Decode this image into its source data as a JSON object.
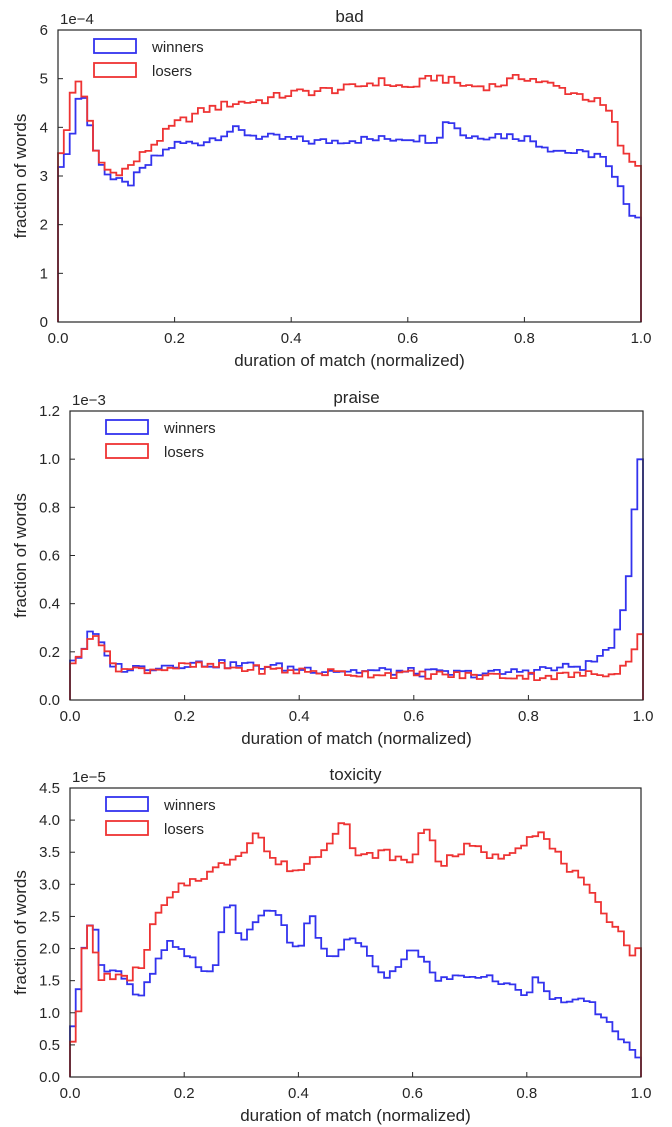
{
  "chart_data": [
    {
      "type": "line",
      "title": "bad",
      "xlabel": "duration of match (normalized)",
      "ylabel": "fraction of words",
      "multiplier": "1e−4",
      "xlim": [
        0,
        1
      ],
      "ylim": [
        0,
        6
      ],
      "xticks": [
        "0.0",
        "0.2",
        "0.4",
        "0.6",
        "0.8",
        "1.0"
      ],
      "yticks": [
        "0",
        "1",
        "2",
        "3",
        "4",
        "5",
        "6"
      ],
      "grid": false,
      "legend_position": "top-left",
      "step": "histogram (100 bins)",
      "series": [
        {
          "name": "winners",
          "color": "#3333ee",
          "anchors": [
            [
              0,
              3.3
            ],
            [
              0.01,
              3.25
            ],
            [
              0.02,
              3.5
            ],
            [
              0.03,
              4.4
            ],
            [
              0.04,
              4.75
            ],
            [
              0.05,
              4.5
            ],
            [
              0.06,
              3.6
            ],
            [
              0.07,
              3.4
            ],
            [
              0.09,
              2.95
            ],
            [
              0.12,
              2.8
            ],
            [
              0.16,
              3.3
            ],
            [
              0.2,
              3.65
            ],
            [
              0.25,
              3.7
            ],
            [
              0.3,
              3.95
            ],
            [
              0.35,
              3.8
            ],
            [
              0.4,
              3.75
            ],
            [
              0.45,
              3.7
            ],
            [
              0.5,
              3.75
            ],
            [
              0.55,
              3.75
            ],
            [
              0.6,
              3.8
            ],
            [
              0.65,
              3.75
            ],
            [
              0.67,
              4.2
            ],
            [
              0.7,
              3.8
            ],
            [
              0.75,
              3.85
            ],
            [
              0.8,
              3.8
            ],
            [
              0.85,
              3.55
            ],
            [
              0.9,
              3.45
            ],
            [
              0.93,
              3.45
            ],
            [
              0.95,
              3.05
            ],
            [
              0.97,
              2.6
            ],
            [
              0.99,
              2.15
            ],
            [
              1.0,
              2.15
            ]
          ]
        },
        {
          "name": "losers",
          "color": "#ee3333",
          "anchors": [
            [
              0,
              3.55
            ],
            [
              0.01,
              3.5
            ],
            [
              0.02,
              4.3
            ],
            [
              0.03,
              5.1
            ],
            [
              0.04,
              4.8
            ],
            [
              0.05,
              4.55
            ],
            [
              0.06,
              3.6
            ],
            [
              0.07,
              3.35
            ],
            [
              0.09,
              3.05
            ],
            [
              0.12,
              3.15
            ],
            [
              0.16,
              3.6
            ],
            [
              0.2,
              4.05
            ],
            [
              0.25,
              4.35
            ],
            [
              0.3,
              4.5
            ],
            [
              0.35,
              4.55
            ],
            [
              0.4,
              4.7
            ],
            [
              0.45,
              4.75
            ],
            [
              0.5,
              4.8
            ],
            [
              0.55,
              4.95
            ],
            [
              0.6,
              4.8
            ],
            [
              0.65,
              5.05
            ],
            [
              0.7,
              4.85
            ],
            [
              0.75,
              4.85
            ],
            [
              0.8,
              5.05
            ],
            [
              0.85,
              4.85
            ],
            [
              0.9,
              4.65
            ],
            [
              0.93,
              4.5
            ],
            [
              0.95,
              4.25
            ],
            [
              0.97,
              3.45
            ],
            [
              0.99,
              3.25
            ],
            [
              1.0,
              3.25
            ]
          ]
        }
      ]
    },
    {
      "type": "line",
      "title": "praise",
      "xlabel": "duration of match (normalized)",
      "ylabel": "fraction of words",
      "multiplier": "1e−3",
      "xlim": [
        0,
        1
      ],
      "ylim": [
        0,
        1.2
      ],
      "xticks": [
        "0.0",
        "0.2",
        "0.4",
        "0.6",
        "0.8",
        "1.0"
      ],
      "yticks": [
        "0.0",
        "0.2",
        "0.4",
        "0.6",
        "0.8",
        "1.0",
        "1.2"
      ],
      "grid": false,
      "legend_position": "top-left",
      "step": "histogram (100 bins)",
      "series": [
        {
          "name": "winners",
          "color": "#3333ee",
          "anchors": [
            [
              0,
              0.17
            ],
            [
              0.02,
              0.18
            ],
            [
              0.03,
              0.26
            ],
            [
              0.04,
              0.28
            ],
            [
              0.05,
              0.26
            ],
            [
              0.06,
              0.19
            ],
            [
              0.08,
              0.14
            ],
            [
              0.1,
              0.13
            ],
            [
              0.15,
              0.14
            ],
            [
              0.2,
              0.15
            ],
            [
              0.25,
              0.15
            ],
            [
              0.3,
              0.145
            ],
            [
              0.35,
              0.14
            ],
            [
              0.4,
              0.13
            ],
            [
              0.45,
              0.125
            ],
            [
              0.5,
              0.12
            ],
            [
              0.55,
              0.12
            ],
            [
              0.6,
              0.115
            ],
            [
              0.65,
              0.11
            ],
            [
              0.7,
              0.11
            ],
            [
              0.75,
              0.11
            ],
            [
              0.8,
              0.125
            ],
            [
              0.85,
              0.13
            ],
            [
              0.88,
              0.14
            ],
            [
              0.9,
              0.14
            ],
            [
              0.92,
              0.17
            ],
            [
              0.94,
              0.21
            ],
            [
              0.96,
              0.3
            ],
            [
              0.97,
              0.41
            ],
            [
              0.98,
              0.61
            ],
            [
              0.99,
              1.0
            ],
            [
              1.0,
              1.0
            ]
          ]
        },
        {
          "name": "losers",
          "color": "#ee3333",
          "anchors": [
            [
              0,
              0.16
            ],
            [
              0.02,
              0.17
            ],
            [
              0.03,
              0.25
            ],
            [
              0.04,
              0.29
            ],
            [
              0.05,
              0.27
            ],
            [
              0.06,
              0.2
            ],
            [
              0.08,
              0.14
            ],
            [
              0.1,
              0.125
            ],
            [
              0.15,
              0.13
            ],
            [
              0.2,
              0.14
            ],
            [
              0.25,
              0.14
            ],
            [
              0.3,
              0.13
            ],
            [
              0.35,
              0.125
            ],
            [
              0.4,
              0.12
            ],
            [
              0.45,
              0.115
            ],
            [
              0.5,
              0.11
            ],
            [
              0.55,
              0.11
            ],
            [
              0.6,
              0.105
            ],
            [
              0.65,
              0.105
            ],
            [
              0.7,
              0.1
            ],
            [
              0.75,
              0.1
            ],
            [
              0.8,
              0.1
            ],
            [
              0.85,
              0.1
            ],
            [
              0.9,
              0.105
            ],
            [
              0.93,
              0.11
            ],
            [
              0.95,
              0.12
            ],
            [
              0.97,
              0.14
            ],
            [
              0.98,
              0.18
            ],
            [
              0.99,
              0.27
            ],
            [
              1.0,
              0.27
            ]
          ]
        }
      ]
    },
    {
      "type": "line",
      "title": "toxicity",
      "xlabel": "duration of match (normalized)",
      "ylabel": "fraction of words",
      "multiplier": "1e−5",
      "xlim": [
        0,
        1
      ],
      "ylim": [
        0,
        4.5
      ],
      "xticks": [
        "0.0",
        "0.2",
        "0.4",
        "0.6",
        "0.8",
        "1.0"
      ],
      "yticks": [
        "0.0",
        "0.5",
        "1.0",
        "1.5",
        "2.0",
        "2.5",
        "3.0",
        "3.5",
        "4.0",
        "4.5"
      ],
      "grid": false,
      "legend_position": "top-left",
      "step": "histogram (100 bins)",
      "series": [
        {
          "name": "winners",
          "color": "#3333ee",
          "anchors": [
            [
              0,
              0.6
            ],
            [
              0.01,
              0.85
            ],
            [
              0.02,
              1.8
            ],
            [
              0.03,
              2.35
            ],
            [
              0.04,
              2.5
            ],
            [
              0.05,
              2.0
            ],
            [
              0.06,
              1.6
            ],
            [
              0.07,
              1.75
            ],
            [
              0.1,
              1.5
            ],
            [
              0.12,
              1.15
            ],
            [
              0.15,
              1.7
            ],
            [
              0.17,
              2.1
            ],
            [
              0.2,
              1.9
            ],
            [
              0.25,
              1.6
            ],
            [
              0.28,
              2.8
            ],
            [
              0.3,
              2.1
            ],
            [
              0.35,
              2.7
            ],
            [
              0.4,
              1.9
            ],
            [
              0.42,
              2.6
            ],
            [
              0.45,
              1.8
            ],
            [
              0.5,
              2.2
            ],
            [
              0.55,
              1.5
            ],
            [
              0.6,
              2.0
            ],
            [
              0.65,
              1.5
            ],
            [
              0.7,
              1.6
            ],
            [
              0.75,
              1.5
            ],
            [
              0.8,
              1.3
            ],
            [
              0.82,
              1.6
            ],
            [
              0.85,
              1.2
            ],
            [
              0.88,
              1.1
            ],
            [
              0.9,
              1.3
            ],
            [
              0.93,
              0.9
            ],
            [
              0.96,
              0.7
            ],
            [
              0.98,
              0.45
            ],
            [
              0.99,
              0.3
            ],
            [
              1.0,
              0.3
            ]
          ]
        },
        {
          "name": "losers",
          "color": "#ee3333",
          "anchors": [
            [
              0,
              0.55
            ],
            [
              0.01,
              0.65
            ],
            [
              0.02,
              1.5
            ],
            [
              0.03,
              2.4
            ],
            [
              0.04,
              2.3
            ],
            [
              0.05,
              1.5
            ],
            [
              0.07,
              1.6
            ],
            [
              0.1,
              1.5
            ],
            [
              0.13,
              1.8
            ],
            [
              0.15,
              2.5
            ],
            [
              0.18,
              2.8
            ],
            [
              0.2,
              3.0
            ],
            [
              0.25,
              3.2
            ],
            [
              0.3,
              3.5
            ],
            [
              0.33,
              3.85
            ],
            [
              0.35,
              3.4
            ],
            [
              0.4,
              3.2
            ],
            [
              0.45,
              3.6
            ],
            [
              0.48,
              4.1
            ],
            [
              0.5,
              3.4
            ],
            [
              0.55,
              3.5
            ],
            [
              0.6,
              3.3
            ],
            [
              0.62,
              4.0
            ],
            [
              0.65,
              3.3
            ],
            [
              0.7,
              3.6
            ],
            [
              0.75,
              3.4
            ],
            [
              0.8,
              3.7
            ],
            [
              0.82,
              3.85
            ],
            [
              0.85,
              3.5
            ],
            [
              0.9,
              3.0
            ],
            [
              0.93,
              2.6
            ],
            [
              0.96,
              2.35
            ],
            [
              0.98,
              1.95
            ],
            [
              1.0,
              1.95
            ]
          ]
        }
      ]
    }
  ]
}
